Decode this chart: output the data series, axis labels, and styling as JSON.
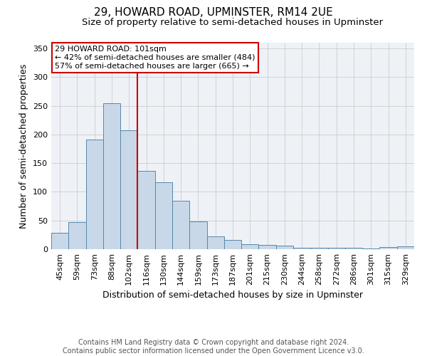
{
  "title1": "29, HOWARD ROAD, UPMINSTER, RM14 2UE",
  "title2": "Size of property relative to semi-detached houses in Upminster",
  "xlabel": "Distribution of semi-detached houses by size in Upminster",
  "ylabel": "Number of semi-detached properties",
  "bin_labels": [
    "45sqm",
    "59sqm",
    "73sqm",
    "88sqm",
    "102sqm",
    "116sqm",
    "130sqm",
    "144sqm",
    "159sqm",
    "173sqm",
    "187sqm",
    "201sqm",
    "215sqm",
    "230sqm",
    "244sqm",
    "258sqm",
    "272sqm",
    "286sqm",
    "301sqm",
    "315sqm",
    "329sqm"
  ],
  "bar_heights": [
    28,
    47,
    191,
    254,
    207,
    137,
    117,
    85,
    48,
    22,
    16,
    9,
    7,
    6,
    3,
    3,
    3,
    3,
    1,
    4,
    5
  ],
  "bar_color": "#c8d8e8",
  "bar_edge_color": "#5588aa",
  "property_line_bin_index": 4,
  "property_label": "29 HOWARD ROAD: 101sqm",
  "annotation_line1": "← 42% of semi-detached houses are smaller (484)",
  "annotation_line2": "57% of semi-detached houses are larger (665) →",
  "red_line_color": "#cc0000",
  "annotation_box_color": "#ffffff",
  "annotation_box_edge": "#cc0000",
  "footer1": "Contains HM Land Registry data © Crown copyright and database right 2024.",
  "footer2": "Contains public sector information licensed under the Open Government Licence v3.0.",
  "ylim": [
    0,
    360
  ],
  "yticks": [
    0,
    50,
    100,
    150,
    200,
    250,
    300,
    350
  ],
  "grid_color": "#cccccc",
  "bg_color": "#eef2f7",
  "title1_fontsize": 11,
  "title2_fontsize": 9.5,
  "axis_label_fontsize": 9,
  "tick_fontsize": 8,
  "footer_fontsize": 7
}
